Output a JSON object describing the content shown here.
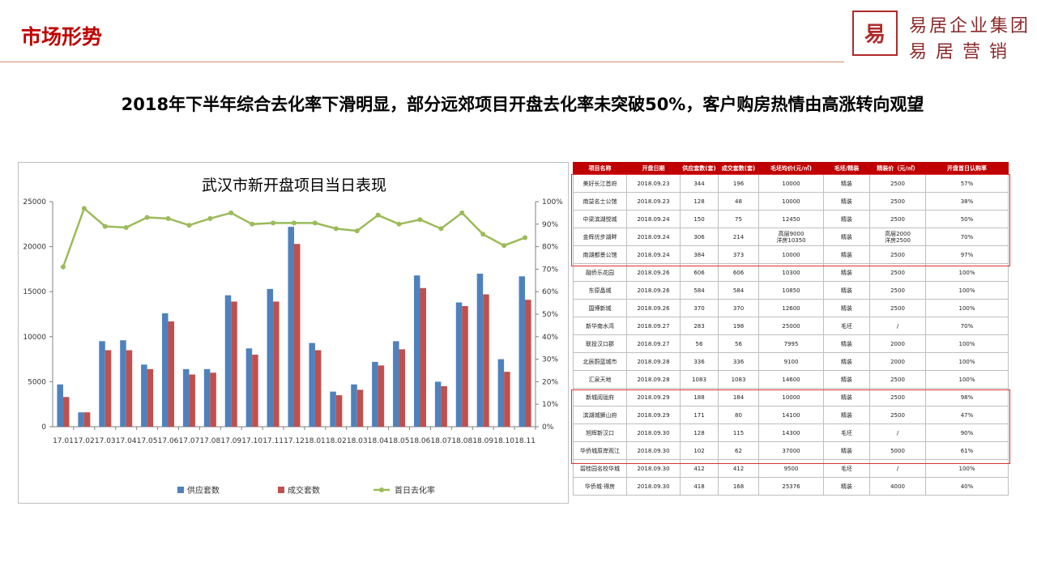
{
  "header": {
    "title": "市场形势"
  },
  "logo": {
    "glyph": "易居",
    "line1": "易居企业集团",
    "line2": "易 居 营 销"
  },
  "headline": "2018年下半年综合去化率下滑明显，部分远郊项目开盘去化率未突破50%，客户购房热情由高涨转向观望",
  "chart_data": {
    "type": "bar",
    "title": "武汉市新开盘项目当日表现",
    "categories": [
      "17.01",
      "17.02",
      "17.03",
      "17.04",
      "17.05",
      "17.06",
      "17.07",
      "17.08",
      "17.09",
      "17.10",
      "17.11",
      "17.12",
      "18.01",
      "18.02",
      "18.03",
      "18.04",
      "18.05",
      "18.06",
      "18.07",
      "18.08",
      "18.09",
      "18.10",
      "18.11"
    ],
    "series": [
      {
        "name": "供应套数",
        "type": "bar",
        "axis": "left",
        "color": "#4f81bd",
        "values": [
          4700,
          1600,
          9500,
          9600,
          6900,
          12600,
          6400,
          6400,
          14600,
          8700,
          15300,
          22200,
          9300,
          3900,
          4700,
          7200,
          9500,
          16800,
          5000,
          13800,
          17000,
          7500,
          16700
        ]
      },
      {
        "name": "成交套数",
        "type": "bar",
        "axis": "left",
        "color": "#c0504d",
        "values": [
          3300,
          1600,
          8500,
          8500,
          6400,
          11700,
          5800,
          6000,
          13900,
          8000,
          13900,
          20300,
          8500,
          3500,
          4100,
          6800,
          8600,
          15400,
          4500,
          13400,
          14700,
          6100,
          14100
        ]
      },
      {
        "name": "首日去化率",
        "type": "line",
        "axis": "right",
        "color": "#9bbb59",
        "values": [
          71,
          97,
          89,
          88.5,
          93,
          92.5,
          89.5,
          92.5,
          95,
          90,
          90.5,
          90.5,
          90.5,
          88,
          87,
          94,
          90,
          92,
          88,
          95,
          85.5,
          80.5,
          84
        ]
      }
    ],
    "ylim_left": [
      0,
      25000
    ],
    "yticks_left": [
      "0",
      "5000",
      "10000",
      "15000",
      "20000",
      "25000"
    ],
    "ylim_right": [
      0,
      100
    ],
    "yticks_right": [
      "0%",
      "10%",
      "20%",
      "30%",
      "40%",
      "50%",
      "60%",
      "70%",
      "80%",
      "90%",
      "100%"
    ],
    "legend_position": "bottom",
    "grid": false
  },
  "table": {
    "headers": [
      "项目名称",
      "开盘日期",
      "供应套数(套)",
      "成交套数(套)",
      "毛坯均价(元/㎡)",
      "毛坯/精装",
      "精装价（元/㎡）",
      "开盘首日认购率"
    ],
    "rows": [
      [
        "美好长江首府",
        "2018.09.23",
        "344",
        "196",
        "10000",
        "精装",
        "2500",
        "57%"
      ],
      [
        "南益名士公馆",
        "2018.09.23",
        "128",
        "48",
        "10000",
        "精装",
        "2500",
        "38%"
      ],
      [
        "中梁滨湖悦城",
        "2018.09.24",
        "150",
        "75",
        "12450",
        "精装",
        "2500",
        "50%"
      ],
      [
        "金辉优步湖畔",
        "2018.09.24",
        "306",
        "214",
        "高层9000\n洋房10350",
        "精装",
        "高层2000\n洋房2500",
        "70%"
      ],
      [
        "南湖都景公馆",
        "2018.09.24",
        "384",
        "373",
        "10000",
        "精装",
        "2500",
        "97%"
      ],
      [
        "融侨乐花园",
        "2018.09.26",
        "606",
        "606",
        "10300",
        "精装",
        "2500",
        "100%"
      ],
      [
        "东原晶城",
        "2018.09.26",
        "584",
        "584",
        "10850",
        "精装",
        "2500",
        "100%"
      ],
      [
        "国博新城",
        "2018.09.26",
        "370",
        "370",
        "12600",
        "精装",
        "2500",
        "100%"
      ],
      [
        "新华南水湾",
        "2018.09.27",
        "283",
        "198",
        "25000",
        "毛坯",
        "/",
        "70%"
      ],
      [
        "联投汉口郡",
        "2018.09.27",
        "56",
        "56",
        "7995",
        "精装",
        "2000",
        "100%"
      ],
      [
        "北辰蔚蓝城市",
        "2018.09.28",
        "336",
        "336",
        "9100",
        "精装",
        "2000",
        "100%"
      ],
      [
        "汇泉天地",
        "2018.09.28",
        "1083",
        "1083",
        "14600",
        "精装",
        "2500",
        "100%"
      ],
      [
        "新城阅珑府",
        "2018.09.29",
        "188",
        "184",
        "10000",
        "精装",
        "2500",
        "98%"
      ],
      [
        "滨湖城狮山府",
        "2018.09.29",
        "171",
        "80",
        "14100",
        "精装",
        "2500",
        "47%"
      ],
      [
        "旭辉新汉口",
        "2018.09.30",
        "128",
        "115",
        "14300",
        "毛坯",
        "/",
        "90%"
      ],
      [
        "华侨城原岸观江",
        "2018.09.30",
        "102",
        "62",
        "37000",
        "精装",
        "5000",
        "61%"
      ],
      [
        "碧桂园名校华城",
        "2018.09.30",
        "412",
        "412",
        "9500",
        "毛坯",
        "/",
        "100%"
      ],
      [
        "华侨城·得房",
        "2018.09.30",
        "418",
        "168",
        "25376",
        "精装",
        "4000",
        "40%"
      ]
    ]
  }
}
